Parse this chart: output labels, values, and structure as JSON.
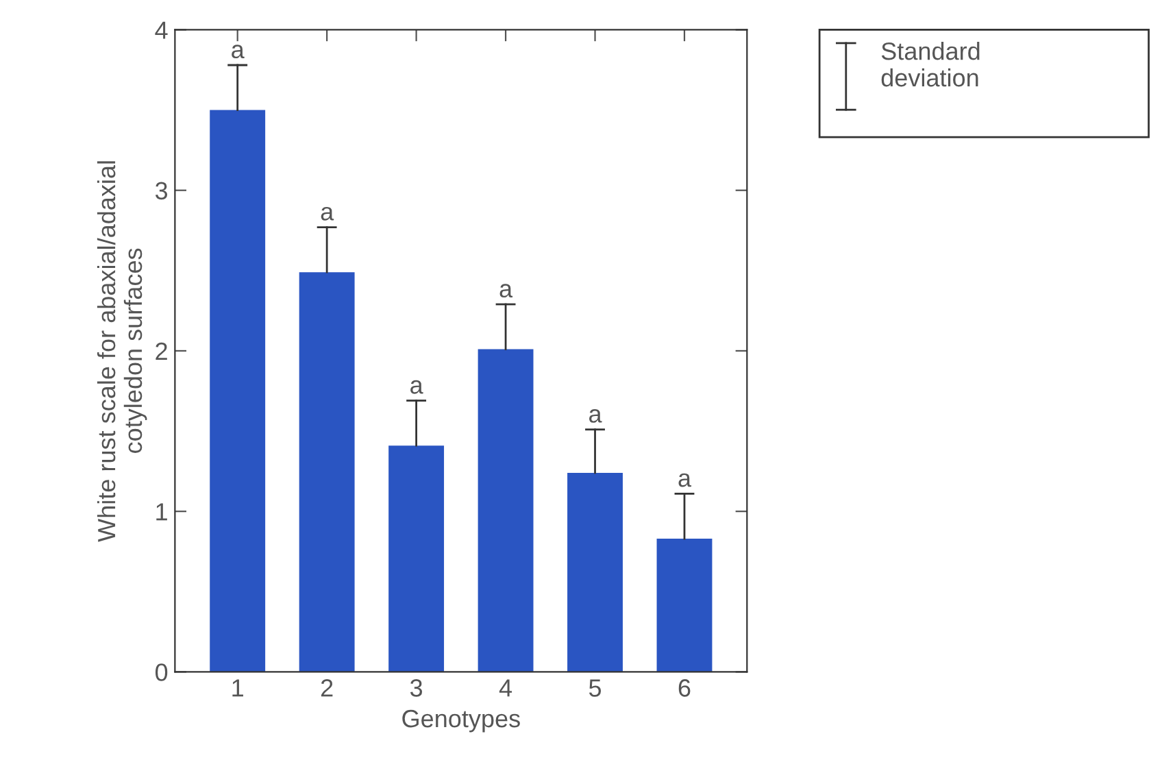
{
  "chart_data": {
    "type": "bar",
    "xlabel": "Genotypes",
    "ylabel": "White rust scale for abaxial/adaxial\ncotyledon surfaces",
    "categories": [
      "1",
      "2",
      "3",
      "4",
      "5",
      "6"
    ],
    "values": [
      3.5,
      2.49,
      1.41,
      2.01,
      1.24,
      0.83
    ],
    "errors": [
      [
        3.5,
        3.78
      ],
      [
        2.49,
        2.77
      ],
      [
        1.41,
        1.69
      ],
      [
        2.01,
        2.29
      ],
      [
        1.24,
        1.51
      ],
      [
        0.83,
        1.11
      ]
    ],
    "color": "#2a55c2",
    "ylim": [
      0,
      4
    ],
    "yticks": [
      0,
      1,
      2,
      3,
      4
    ],
    "grid": false,
    "annotations": [
      {
        "text": "a",
        "x": "1",
        "y": 3.78
      },
      {
        "text": "a",
        "x": "2",
        "y": 2.77
      },
      {
        "text": "a",
        "x": "3",
        "y": 1.69
      },
      {
        "text": "a",
        "x": "4",
        "y": 2.29
      },
      {
        "text": "a",
        "x": "5",
        "y": 1.51
      },
      {
        "text": "a",
        "x": "6",
        "y": 1.11
      },
      "Standard\ndeviation"
    ]
  }
}
